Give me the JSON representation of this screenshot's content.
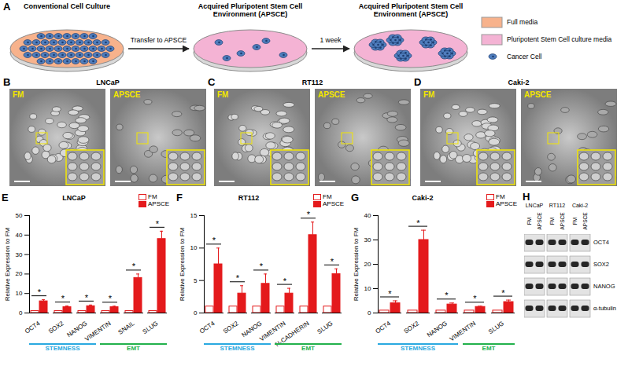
{
  "panel_labels": [
    "A",
    "B",
    "C",
    "D",
    "E",
    "F",
    "G",
    "H"
  ],
  "schematic": {
    "dishes": [
      {
        "label": "Conventional Cell Culture",
        "media": "Full media"
      },
      {
        "label": "Acquired Pluripotent Stem Cell Environment (APSCE)",
        "media": "Pluripotent Stem Cell culture media"
      },
      {
        "label": "Acquired Pluripotent Stem Cell Environment (APSCE)",
        "media": "Pluripotent Stem Cell culture media"
      }
    ],
    "arrows": [
      "Transfer to APSCE",
      "1 week"
    ],
    "legend": [
      {
        "label": "Full media",
        "color": "#f7b28c",
        "marker": "swatch"
      },
      {
        "label": "Pluripotent Stem Cell culture media",
        "color": "#f4b3d4",
        "marker": "swatch"
      },
      {
        "label": "Cancer Cell",
        "color": "#4f7dbd",
        "marker": "cell"
      }
    ]
  },
  "micrographs": [
    {
      "title": "LNCaP",
      "images": [
        "FM",
        "APSCE"
      ]
    },
    {
      "title": "RT112",
      "images": [
        "FM",
        "APSCE"
      ]
    },
    {
      "title": "Caki-2",
      "images": [
        "FM",
        "APSCE"
      ]
    }
  ],
  "chart_data": [
    {
      "type": "bar",
      "title": "LNCaP",
      "y_label": "Relative Expression to FM",
      "categories": [
        "OCT4",
        "SOX2",
        "NANOG",
        "VIMENTIN",
        "SNAIL",
        "SLUG"
      ],
      "series": [
        {
          "name": "FM",
          "color": "#e41a1c",
          "values": [
            1,
            1,
            1,
            1,
            1,
            1
          ]
        },
        {
          "name": "APSCE",
          "color": "#e41a1c",
          "values": [
            6,
            3,
            3.5,
            3,
            18,
            38
          ],
          "errors": [
            0.8,
            0.6,
            0.6,
            0.5,
            2,
            4
          ]
        }
      ],
      "significance": [
        "*",
        "*",
        "*",
        "*",
        "*",
        "*"
      ],
      "groups": [
        {
          "name": "STEMNESS",
          "color": "#2aa9e0",
          "categories": [
            "OCT4",
            "SOX2",
            "NANOG"
          ]
        },
        {
          "name": "EMT",
          "color": "#22b14c",
          "categories": [
            "VIMENTIN",
            "SNAIL",
            "SLUG"
          ]
        }
      ],
      "ylim": [
        0,
        50
      ],
      "yticks": [
        0,
        10,
        20,
        30,
        40,
        50
      ],
      "legend": "top-right"
    },
    {
      "type": "bar",
      "title": "RT112",
      "y_label": "Relative Expression to FM",
      "categories": [
        "OCT4",
        "SOX2",
        "NANOG",
        "VIMENTIN",
        "N-CADHERIN",
        "SLUG"
      ],
      "series": [
        {
          "name": "FM",
          "color": "#e41a1c",
          "values": [
            1,
            1,
            1,
            1,
            1,
            1
          ]
        },
        {
          "name": "APSCE",
          "color": "#e41a1c",
          "values": [
            7.5,
            3,
            4.5,
            3,
            12,
            6
          ],
          "errors": [
            2.5,
            1.2,
            1.5,
            0.8,
            2,
            0.8
          ]
        }
      ],
      "significance": [
        "*",
        "*",
        "*",
        "*",
        "*",
        "*"
      ],
      "groups": [
        {
          "name": "STEMNESS",
          "color": "#2aa9e0",
          "categories": [
            "OCT4",
            "SOX2",
            "NANOG"
          ]
        },
        {
          "name": "EMT",
          "color": "#22b14c",
          "categories": [
            "VIMENTIN",
            "N-CADHERIN",
            "SLUG"
          ]
        }
      ],
      "ylim": [
        0,
        15
      ],
      "yticks": [
        0,
        5,
        10,
        15
      ],
      "legend": "top-right"
    },
    {
      "type": "bar",
      "title": "Caki-2",
      "y_label": "Relative Expression to FM",
      "categories": [
        "OCT4",
        "SOX2",
        "NANOG",
        "VIMENTIN",
        "SLUG"
      ],
      "series": [
        {
          "name": "FM",
          "color": "#e41a1c",
          "values": [
            1,
            1,
            1,
            1,
            1
          ]
        },
        {
          "name": "APSCE",
          "color": "#e41a1c",
          "values": [
            4,
            30,
            3.5,
            2.5,
            4.5
          ],
          "errors": [
            1,
            4,
            0.6,
            0.3,
            0.8
          ]
        }
      ],
      "significance": [
        "*",
        "*",
        "*",
        "*",
        "*"
      ],
      "groups": [
        {
          "name": "STEMNESS",
          "color": "#2aa9e0",
          "categories": [
            "OCT4",
            "SOX2",
            "NANOG"
          ]
        },
        {
          "name": "EMT",
          "color": "#22b14c",
          "categories": [
            "VIMENTIN",
            "SLUG"
          ]
        }
      ],
      "ylim": [
        0,
        40
      ],
      "yticks": [
        0,
        10,
        20,
        30,
        40
      ],
      "legend": "top-right"
    }
  ],
  "western_blot": {
    "cell_lines": [
      "LNCaP",
      "RT112",
      "Caki-2"
    ],
    "lanes": [
      "FM",
      "APSCE"
    ],
    "proteins": [
      "OCT4",
      "SOX2",
      "NANOG",
      "α-tubulin"
    ]
  }
}
